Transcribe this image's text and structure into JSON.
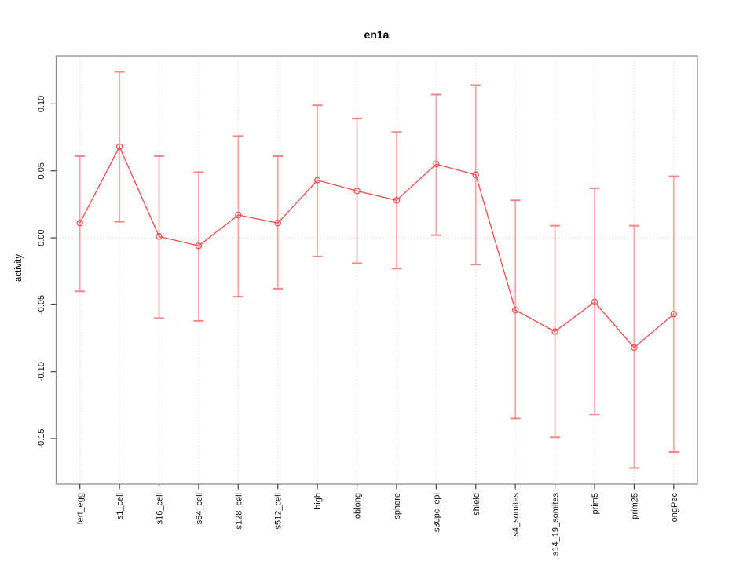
{
  "chart_data": {
    "type": "line",
    "title": "en1a",
    "xlabel": "",
    "ylabel": "activity",
    "legend_position": "none",
    "grid": {
      "vertical_dotted": true,
      "horizontal_zero_dotted": true
    },
    "categories": [
      "fert_egg",
      "s1_cell",
      "s16_cell",
      "s64_cell",
      "s128_cell",
      "s512_cell",
      "high",
      "oblong",
      "sphere",
      "s30pc_epi",
      "shield",
      "s4_somites",
      "s14_19_somites",
      "prim5",
      "prim25",
      "longPec"
    ],
    "series": [
      {
        "name": "activity",
        "marker": "open-circle",
        "values": [
          0.011,
          0.068,
          0.001,
          -0.006,
          0.017,
          0.011,
          0.043,
          0.035,
          0.028,
          0.055,
          0.047,
          -0.054,
          -0.07,
          -0.048,
          -0.082,
          -0.057
        ],
        "error_upper": [
          0.061,
          0.124,
          0.061,
          0.049,
          0.076,
          0.061,
          0.099,
          0.089,
          0.079,
          0.107,
          0.114,
          0.028,
          0.009,
          0.037,
          0.009,
          0.046
        ],
        "error_lower": [
          -0.04,
          0.012,
          -0.06,
          -0.062,
          -0.044,
          -0.038,
          -0.014,
          -0.019,
          -0.023,
          0.002,
          -0.02,
          -0.135,
          -0.149,
          -0.132,
          -0.172,
          -0.16
        ]
      }
    ],
    "yticks": [
      {
        "v": 0.1,
        "label": "0.10"
      },
      {
        "v": 0.05,
        "label": "0.05"
      },
      {
        "v": 0.0,
        "label": "0.00"
      },
      {
        "v": -0.05,
        "label": "-0.05"
      },
      {
        "v": -0.1,
        "label": "-0.10"
      },
      {
        "v": -0.15,
        "label": "-0.15"
      }
    ],
    "ylim": [
      -0.184,
      0.136
    ],
    "colors": {
      "line": "#f54a4a",
      "marker": "#f54a4a",
      "error_bar": "#f87272",
      "gridline": "#e3e3e3",
      "zero_line": "#d9d9d9",
      "frame": "#8e8e8e",
      "tick": "#444444",
      "text": "#111111",
      "background": "#ffffff"
    }
  }
}
